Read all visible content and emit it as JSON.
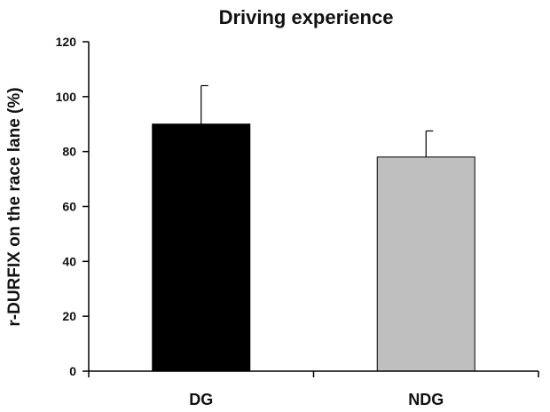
{
  "chart_data": {
    "type": "bar",
    "title": "Driving experience",
    "xlabel": "",
    "ylabel": "r-DURFIX on the race lane (%)",
    "categories": [
      "DG",
      "NDG"
    ],
    "values": [
      90,
      78
    ],
    "error_upper": [
      14,
      9.5
    ],
    "bar_colors": [
      "#000000",
      "#bfbfbf"
    ],
    "ylim": [
      0,
      120
    ],
    "yticks": [
      0,
      20,
      40,
      60,
      80,
      100,
      120
    ],
    "ytick_labels": [
      "0",
      "20",
      "40",
      "60",
      "80",
      "100",
      "120"
    ],
    "grid": false,
    "legend": "none"
  }
}
